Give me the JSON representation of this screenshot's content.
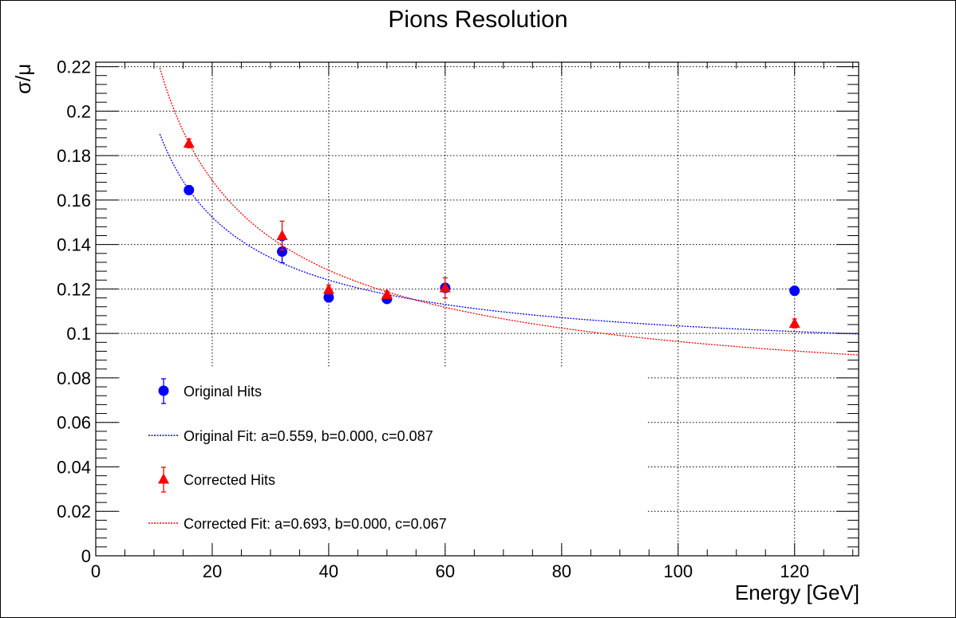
{
  "chart_data": {
    "type": "scatter",
    "title": "Pions Resolution",
    "xlabel": "Energy [GeV]",
    "ylabel": "σ/μ",
    "xlim": [
      0,
      131
    ],
    "ylim": [
      0,
      0.222
    ],
    "grid": true,
    "x_ticks": [
      "0",
      "20",
      "40",
      "60",
      "80",
      "100",
      "120"
    ],
    "y_ticks": [
      "0",
      "0.02",
      "0.04",
      "0.06",
      "0.08",
      "0.1",
      "0.12",
      "0.14",
      "0.16",
      "0.18",
      "0.2",
      "0.22"
    ],
    "legend_position": "bottom-left",
    "series": [
      {
        "name": "Original Hits",
        "kind": "points",
        "marker": "circle",
        "color": "#0000ff",
        "points": [
          {
            "x": 16,
            "y": 0.1645,
            "err": 0.002
          },
          {
            "x": 32,
            "y": 0.1368,
            "err": 0.005
          },
          {
            "x": 40,
            "y": 0.1162,
            "err": 0.002
          },
          {
            "x": 50,
            "y": 0.1155,
            "err": 0.0015
          },
          {
            "x": 60,
            "y": 0.1205,
            "err": 0.002
          },
          {
            "x": 120,
            "y": 0.1192,
            "err": 0.002
          }
        ]
      },
      {
        "name": "Original Fit: a=0.559, b=0.000, c=0.087",
        "kind": "fit",
        "color": "#0000ff",
        "a": 0.559,
        "b": 0.0,
        "c": 0.087,
        "x_range": [
          11,
          131
        ]
      },
      {
        "name": "Corrected Hits",
        "kind": "points",
        "marker": "triangle",
        "color": "#ff0000",
        "points": [
          {
            "x": 16,
            "y": 0.1855,
            "err": 0.002
          },
          {
            "x": 32,
            "y": 0.144,
            "err": 0.0065
          },
          {
            "x": 40,
            "y": 0.1198,
            "err": 0.002
          },
          {
            "x": 50,
            "y": 0.1175,
            "err": 0.0015
          },
          {
            "x": 60,
            "y": 0.1205,
            "err": 0.0045
          },
          {
            "x": 120,
            "y": 0.1045,
            "err": 0.002
          }
        ]
      },
      {
        "name": "Corrected Fit: a=0.693, b=0.000, c=0.067",
        "kind": "fit",
        "color": "#ff0000",
        "a": 0.693,
        "b": 0.0,
        "c": 0.067,
        "x_range": [
          11,
          131
        ]
      }
    ]
  }
}
